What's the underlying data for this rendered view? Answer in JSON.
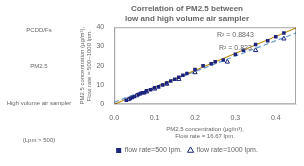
{
  "chart_data": {
    "type": "scatter",
    "title": "Correlation of PM2.5 between\nlow and high volume air sampler",
    "xlabel": "PM2.5 concentration (μg/m³),\nFlow rate = 16.67 lpm.",
    "ylabel": "PM2.5 concentration (μg/m³),\nFlow rate = 500~1000 lpm.",
    "xlim": [
      0,
      0.45
    ],
    "ylim": [
      0,
      40
    ],
    "xticks": [
      {
        "value": 0,
        "label": "0.0"
      },
      0.1,
      0.2,
      0.3,
      0.4
    ],
    "yticks": [
      0,
      10,
      20,
      30,
      40
    ],
    "grid": false,
    "legend": "bottom",
    "series": [
      {
        "name": "flow rate=500 lpm.",
        "color": "#1a237e",
        "marker": "square",
        "x": [
          0.03,
          0.04,
          0.045,
          0.05,
          0.06,
          0.065,
          0.07,
          0.075,
          0.08,
          0.09,
          0.1,
          0.11,
          0.12,
          0.13,
          0.14,
          0.15,
          0.16,
          0.17,
          0.18,
          0.2,
          0.22,
          0.24,
          0.25,
          0.27,
          0.3,
          0.32,
          0.35,
          0.38,
          0.4,
          0.42
        ],
        "values": [
          2,
          3,
          3.5,
          4,
          5,
          5.5,
          6,
          6,
          7,
          7.5,
          8.5,
          9,
          10,
          11,
          12,
          13,
          14,
          15,
          16,
          18,
          20,
          21,
          22,
          23,
          26,
          28,
          31,
          33,
          35,
          37
        ]
      },
      {
        "name": "flow rate=1000 lpm.",
        "color": "#1a237e",
        "marker": "open_triangle",
        "x": [
          0.035,
          0.055,
          0.08,
          0.1,
          0.13,
          0.16,
          0.2,
          0.28,
          0.35,
          0.42
        ],
        "values": [
          2.5,
          4.5,
          6.5,
          8,
          10.5,
          13,
          16.5,
          22,
          28,
          34
        ]
      },
      {
        "type": "line",
        "color": "#b8860b",
        "line_style": "solid",
        "x": [
          0.0,
          0.45
        ],
        "values": [
          0.0,
          39.6
        ]
      },
      {
        "type": "line",
        "color": "#6699cc",
        "line_style": "dashed",
        "x": [
          0.0,
          0.45
        ],
        "values": [
          1.0,
          37.0
        ]
      }
    ],
    "annotations": [
      {
        "text": "R² = 0.8843",
        "x": 0.3,
        "y": 35
      },
      {
        "text": "R² = 0.823",
        "x": 0.3,
        "y": 28
      },
      {
        "text": "PCDD/Fs"
      },
      {
        "text": "PM2.5"
      },
      {
        "text": "High volume air sampler"
      },
      {
        "text": "(Lpm > 500)"
      }
    ]
  }
}
